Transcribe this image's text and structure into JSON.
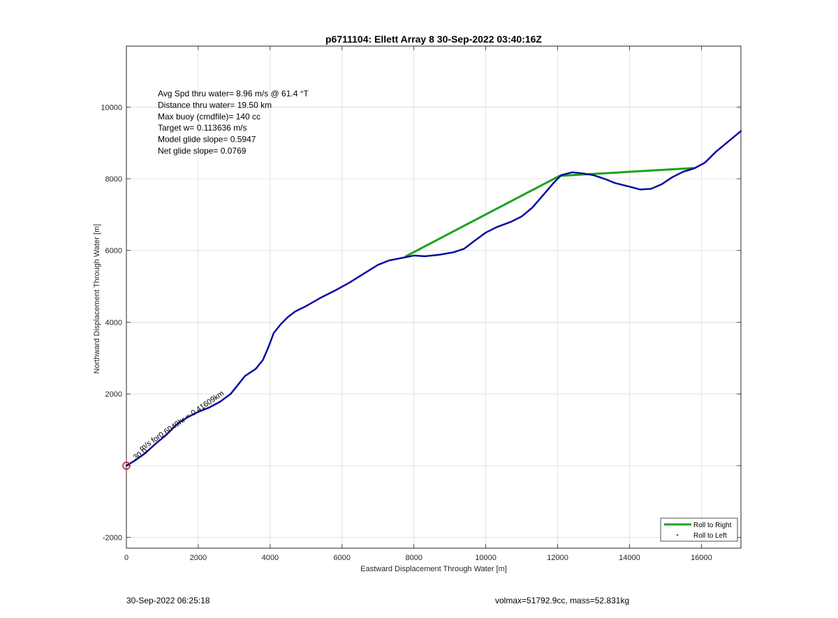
{
  "chart_data": {
    "type": "line",
    "title": "p6711104: Ellett Array 8 30-Sep-2022 03:40:16Z",
    "xlabel": "Eastward Displacement Through Water [m]",
    "ylabel": "Northward Displacement Through Water [m]",
    "xlim": [
      0,
      17100
    ],
    "ylim": [
      -2300,
      11700
    ],
    "xticks": [
      0,
      2000,
      4000,
      6000,
      8000,
      10000,
      12000,
      14000,
      16000
    ],
    "xtick_labels": [
      "0",
      "2000",
      "4000",
      "6000",
      "8000",
      "10000",
      "12000",
      "14000",
      "16000"
    ],
    "yticks": [
      -2000,
      0,
      2000,
      4000,
      6000,
      8000,
      10000
    ],
    "ytick_labels": [
      "-2000",
      "",
      "2000",
      "4000",
      "6000",
      "8000",
      "10000"
    ],
    "grid": true,
    "legend_placement": "bottom-right",
    "legend": [
      "Roll to Right",
      "Roll to Left"
    ],
    "stats_lines": [
      "Avg Spd thru water=  8.96 m/s @  61.4 °T",
      "Distance thru water= 19.50 km",
      "Max buoy (cmdfile)= 140 cc",
      "Target w= 0.113636 m/s",
      "Model glide slope= 0.5947",
      "Net glide slope= 0.0769"
    ],
    "series": [
      {
        "name": "Roll to Right",
        "color": "#1aa31a",
        "points": [
          [
            7760,
            5830
          ],
          [
            12050,
            8080
          ],
          [
            15800,
            8300
          ]
        ]
      },
      {
        "color": "#0a0a9e",
        "points": [
          [
            0,
            0
          ],
          [
            200,
            120
          ],
          [
            500,
            330
          ],
          [
            800,
            600
          ],
          [
            1100,
            850
          ],
          [
            1400,
            1150
          ],
          [
            1700,
            1350
          ],
          [
            2000,
            1500
          ],
          [
            2300,
            1620
          ],
          [
            2600,
            1780
          ],
          [
            2900,
            2000
          ],
          [
            3100,
            2250
          ],
          [
            3300,
            2500
          ],
          [
            3600,
            2700
          ],
          [
            3800,
            2950
          ],
          [
            3950,
            3300
          ],
          [
            4100,
            3700
          ],
          [
            4300,
            3950
          ],
          [
            4500,
            4150
          ],
          [
            4700,
            4300
          ],
          [
            5000,
            4450
          ],
          [
            5400,
            4680
          ],
          [
            5800,
            4880
          ],
          [
            6200,
            5100
          ],
          [
            6600,
            5350
          ],
          [
            7000,
            5600
          ],
          [
            7300,
            5720
          ],
          [
            7700,
            5800
          ],
          [
            8000,
            5860
          ],
          [
            8300,
            5840
          ],
          [
            8700,
            5880
          ],
          [
            9100,
            5950
          ],
          [
            9400,
            6050
          ],
          [
            9700,
            6280
          ],
          [
            10000,
            6500
          ],
          [
            10300,
            6650
          ],
          [
            10700,
            6800
          ],
          [
            11000,
            6950
          ],
          [
            11300,
            7200
          ],
          [
            11600,
            7550
          ],
          [
            11900,
            7900
          ],
          [
            12100,
            8100
          ],
          [
            12400,
            8180
          ],
          [
            12700,
            8150
          ],
          [
            13000,
            8100
          ],
          [
            13300,
            8000
          ],
          [
            13600,
            7880
          ],
          [
            14000,
            7780
          ],
          [
            14300,
            7700
          ],
          [
            14600,
            7720
          ],
          [
            14900,
            7850
          ],
          [
            15200,
            8050
          ],
          [
            15500,
            8200
          ],
          [
            15800,
            8290
          ],
          [
            16100,
            8450
          ],
          [
            16400,
            8750
          ],
          [
            16700,
            9000
          ],
          [
            17100,
            9330
          ]
        ]
      }
    ],
    "annotations": [
      {
        "text": "m/s for0.6049hr  = 0.41609km",
        "x": 420,
        "y": 400
      },
      {
        "text": "30.0",
        "x": 250,
        "y": 150
      }
    ],
    "start_marker": {
      "x": 0,
      "y": 0
    }
  },
  "footer": {
    "timestamp": "30-Sep-2022 06:25:18",
    "vol_info": "volmax=51792.9cc, mass=52.831kg"
  }
}
